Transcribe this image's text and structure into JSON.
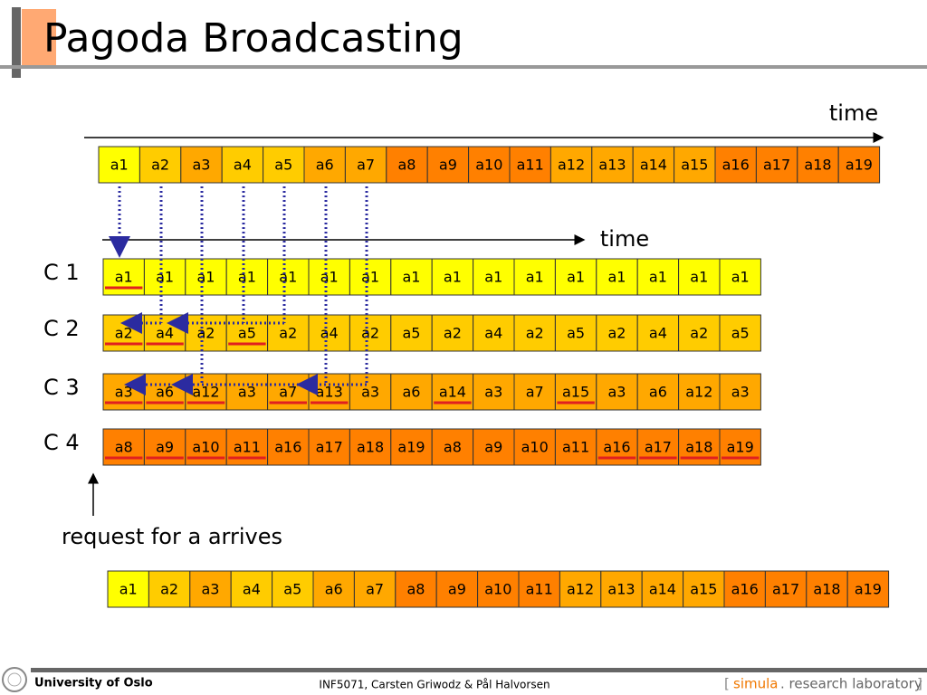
{
  "title": "Pagoda Broadcasting",
  "time_label_top": "time",
  "time_label_channels": "time",
  "segments_row": [
    "a1",
    "a2",
    "a3",
    "a4",
    "a5",
    "a6",
    "a7",
    "a8",
    "a9",
    "a10",
    "a11",
    "a12",
    "a13",
    "a14",
    "a15",
    "a16",
    "a17",
    "a18",
    "a19"
  ],
  "channels": [
    {
      "label": "C 1",
      "color": "#ffff00",
      "cells": [
        "a1",
        "a1",
        "a1",
        "a1",
        "a1",
        "a1",
        "a1",
        "a1",
        "a1",
        "a1",
        "a1",
        "a1",
        "a1",
        "a1",
        "a1",
        "a1"
      ]
    },
    {
      "label": "C 2",
      "color": "#ffcc00",
      "cells": [
        "a2",
        "a4",
        "a2",
        "a5",
        "a2",
        "a4",
        "a2",
        "a5",
        "a2",
        "a4",
        "a2",
        "a5",
        "a2",
        "a4",
        "a2",
        "a5"
      ]
    },
    {
      "label": "C 3",
      "color": "#ffa800",
      "cells": [
        "a3",
        "a6",
        "a12",
        "a3",
        "a7",
        "a13",
        "a3",
        "a6",
        "a14",
        "a3",
        "a7",
        "a15",
        "a3",
        "a6",
        "a12",
        "a3"
      ]
    },
    {
      "label": "C 4",
      "color": "#ff8000",
      "cells": [
        "a8",
        "a9",
        "a10",
        "a11",
        "a16",
        "a17",
        "a18",
        "a19",
        "a8",
        "a9",
        "a10",
        "a11",
        "a16",
        "a17",
        "a18",
        "a19"
      ]
    }
  ],
  "request_label": "request for a arrives",
  "playback_row": [
    "a1",
    "a2",
    "a3",
    "a4",
    "a5",
    "a6",
    "a7",
    "a8",
    "a9",
    "a10",
    "a11",
    "a12",
    "a13",
    "a14",
    "a15",
    "a16",
    "a17",
    "a18",
    "a19"
  ],
  "footer": {
    "institution": "University of Oslo",
    "credits": "INF5071,  Carsten Griwodz & Pål Halvorsen",
    "lab_open": "[",
    "lab_brand": "simula",
    "lab_text": ". research laboratory",
    "lab_close": "]"
  }
}
